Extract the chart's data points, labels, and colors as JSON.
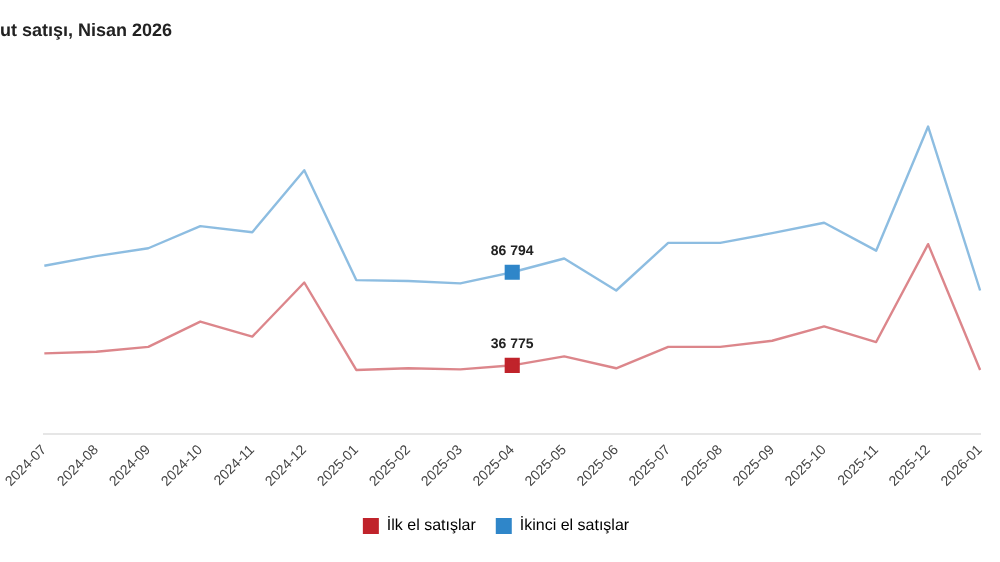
{
  "chart_data": {
    "type": "line",
    "title": "ut satışı, Nisan 2026",
    "categories": [
      "2024-07",
      "2024-08",
      "2024-09",
      "2024-10",
      "2024-11",
      "2024-12",
      "2025-01",
      "2025-02",
      "2025-03",
      "2025-04",
      "2025-05",
      "2025-06",
      "2025-07",
      "2025-08",
      "2025-09",
      "2025-10",
      "2025-11",
      "2025-12",
      "2026-01"
    ],
    "series": [
      {
        "name": "İlk el satışlar",
        "color": "#c0232b",
        "values": [
          43200,
          44100,
          46700,
          60300,
          52200,
          81300,
          34300,
          35200,
          34600,
          36775,
          41600,
          35200,
          46700,
          46700,
          50000,
          57700,
          49300,
          101900,
          34300
        ],
        "value_labels": [
          null,
          null,
          null,
          null,
          null,
          null,
          null,
          null,
          null,
          "36 775",
          null,
          null,
          null,
          null,
          null,
          null,
          null,
          null,
          null
        ]
      },
      {
        "name": "İkinci el satışlar",
        "color": "#2f86c9",
        "values": [
          90300,
          95500,
          99700,
          111600,
          108300,
          141600,
          82600,
          82100,
          80800,
          86794,
          94200,
          77000,
          102600,
          102600,
          107800,
          113400,
          98400,
          165100,
          77000
        ],
        "value_labels": [
          null,
          null,
          null,
          null,
          null,
          null,
          null,
          null,
          null,
          "86 794",
          null,
          null,
          null,
          null,
          null,
          null,
          null,
          null,
          null
        ]
      }
    ],
    "tick_labels": "x",
    "legend": "bottom",
    "grid": false
  }
}
